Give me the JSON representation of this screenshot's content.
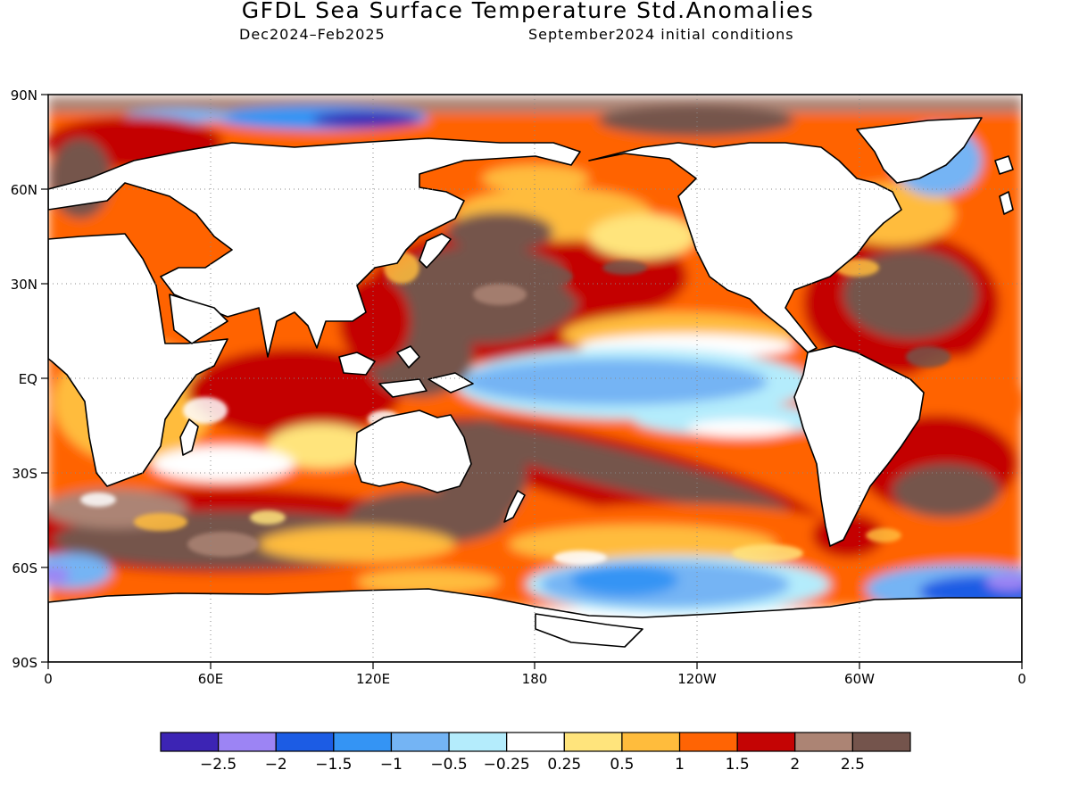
{
  "header": {
    "title": "GFDL Sea Surface Temperature Std.Anomalies",
    "period": "Dec2024–Feb2025",
    "init": "September2024 initial conditions"
  },
  "axes": {
    "lat_labels": [
      "90N",
      "60N",
      "30N",
      "EQ",
      "30S",
      "60S",
      "90S"
    ],
    "lon_labels": [
      "0",
      "60E",
      "120E",
      "180",
      "120W",
      "60W",
      "0"
    ]
  },
  "colorbar": {
    "colors": [
      "#3c24b4",
      "#9c84f4",
      "#1c5ce4",
      "#3494f4",
      "#74b4f4",
      "#b4ecfc",
      "#ffffff",
      "#ffe47c",
      "#ffbc3c",
      "#ff6404",
      "#c40404",
      "#ac8474",
      "#74544c"
    ],
    "labels": [
      "−2.5",
      "−2",
      "−1.5",
      "−1",
      "−0.5",
      "−0.25",
      "0.25",
      "0.5",
      "1",
      "1.5",
      "2",
      "2.5"
    ]
  },
  "chart_data": {
    "type": "heatmap",
    "title": "GFDL Sea Surface Temperature Std.Anomalies",
    "subtitle": [
      "Dec2024–Feb2025",
      "September2024 initial conditions"
    ],
    "variable": "Sea Surface Temperature Std.Anomalies",
    "xlim": [
      0,
      360
    ],
    "ylim": [
      -90,
      90
    ],
    "x_ticks": [
      "0",
      "60E",
      "120E",
      "180",
      "120W",
      "60W",
      "0"
    ],
    "y_ticks": [
      "90N",
      "60N",
      "30N",
      "EQ",
      "30S",
      "60S",
      "90S"
    ],
    "grid": true,
    "legend": "bottom colorbar",
    "levels": [
      -2.5,
      -2,
      -1.5,
      -1,
      -0.5,
      -0.25,
      0.25,
      0.5,
      1,
      1.5,
      2,
      2.5
    ],
    "colors": [
      "#3c24b4",
      "#9c84f4",
      "#1c5ce4",
      "#3494f4",
      "#74b4f4",
      "#b4ecfc",
      "#ffffff",
      "#ffe47c",
      "#ffbc3c",
      "#ff6404",
      "#c40404",
      "#ac8474",
      "#74544c"
    ],
    "anomaly_regions": [
      {
        "region": "equatorial central-eastern Pacific",
        "lon": [
          150,
          260
        ],
        "lat": [
          -12,
          8
        ],
        "value": -1
      },
      {
        "region": "North Pacific",
        "lon": [
          130,
          230
        ],
        "lat": [
          15,
          48
        ],
        "value": 2.5
      },
      {
        "region": "South Pacific subtropics",
        "lon": [
          155,
          265
        ],
        "lat": [
          -48,
          -15
        ],
        "value": 2
      },
      {
        "region": "Southern Ocean Pacific sector",
        "lon": [
          180,
          290
        ],
        "lat": [
          -70,
          -52
        ],
        "value": -1
      },
      {
        "region": "Southern Ocean Atlantic sector",
        "lon": [
          305,
          360
        ],
        "lat": [
          -70,
          -58
        ],
        "value": -1.5
      },
      {
        "region": "Indian Ocean",
        "lon": [
          45,
          115
        ],
        "lat": [
          -45,
          20
        ],
        "value": 1.5
      },
      {
        "region": "Southern Indian Ocean",
        "lon": [
          0,
          120
        ],
        "lat": [
          -58,
          -35
        ],
        "value": 2.5
      },
      {
        "region": "North Atlantic",
        "lon": [
          280,
          350
        ],
        "lat": [
          5,
          45
        ],
        "value": 2
      },
      {
        "region": "Arctic near 90E",
        "lon": [
          60,
          140
        ],
        "lat": [
          78,
          85
        ],
        "value": -2
      }
    ]
  }
}
